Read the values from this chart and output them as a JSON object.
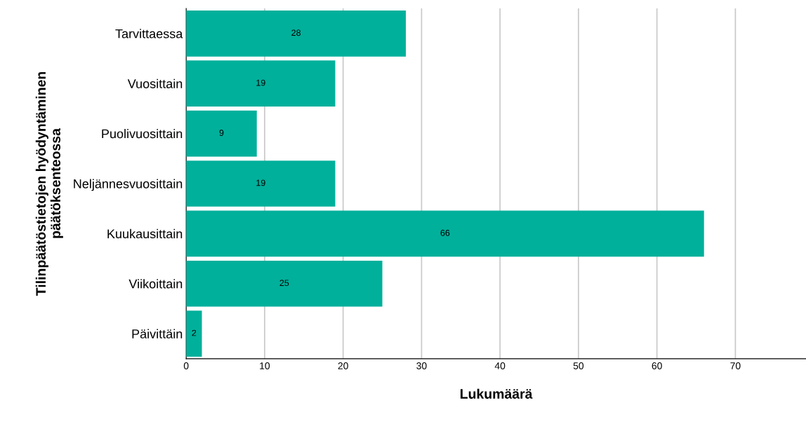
{
  "chart_data": {
    "type": "bar",
    "orientation": "horizontal",
    "xlabel": "Lukumäärä",
    "ylabel": "Tilinpäätöstietojen hyödyntäminen\npäätöksenteossa",
    "categories": [
      "Tarvittaessa",
      "Vuosittain",
      "Puolivuosittain",
      "Neljännesvuosittain",
      "Kuukausittain",
      "Viikoittain",
      "Päivittäin"
    ],
    "values": [
      28,
      19,
      9,
      19,
      66,
      25,
      2
    ],
    "color": "#00b09b",
    "xlim": [
      0,
      79
    ],
    "xticks": [
      0,
      10,
      20,
      30,
      40,
      50,
      60,
      70
    ],
    "grid": "x",
    "data_labels": true
  }
}
